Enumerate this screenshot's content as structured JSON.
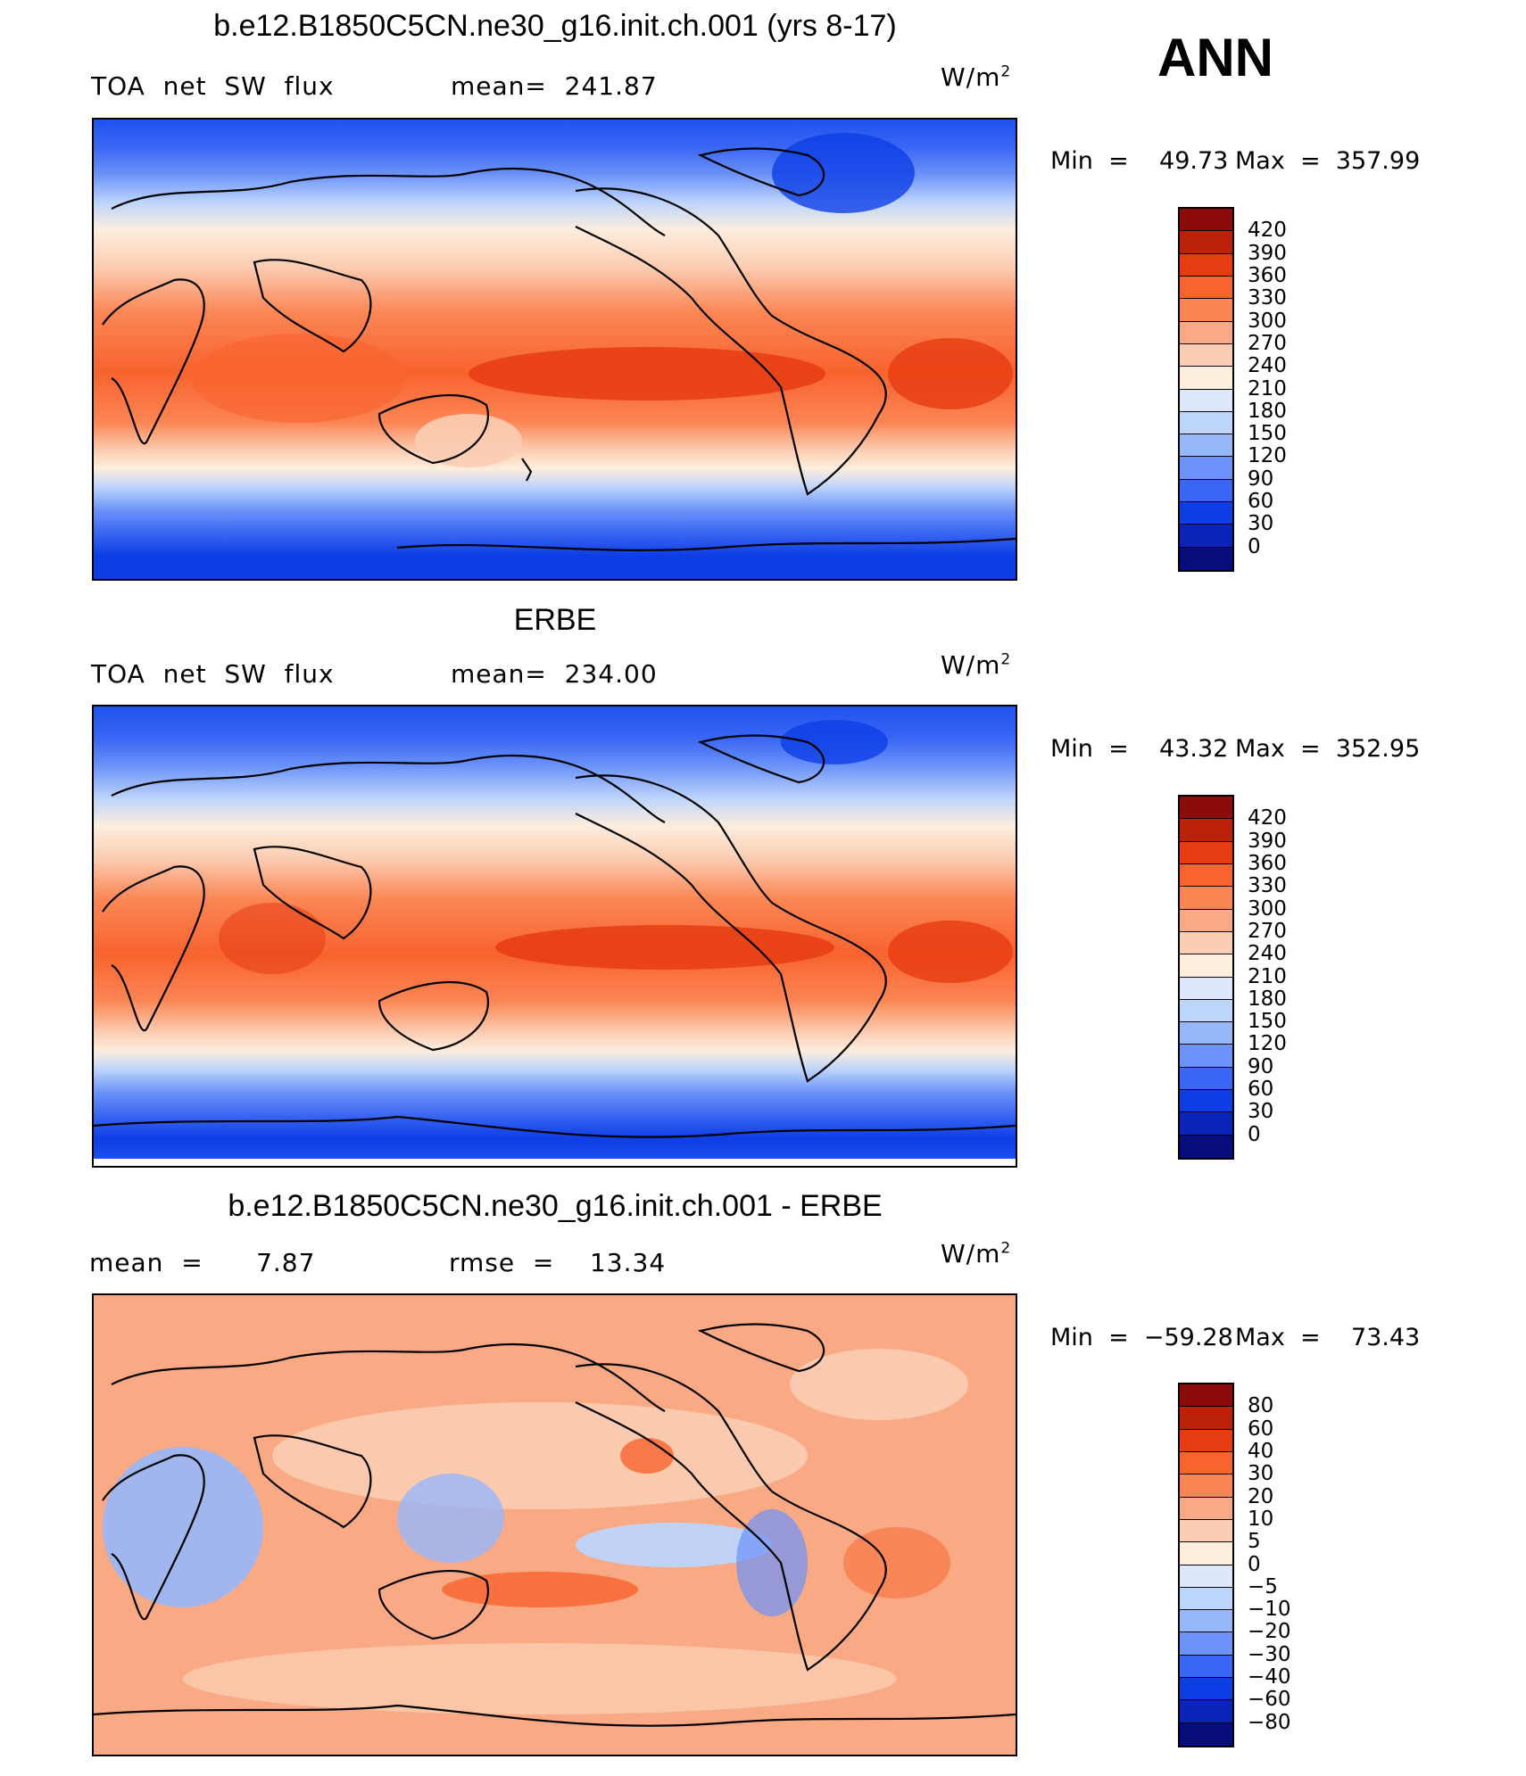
{
  "panels": [
    {
      "title": "b.e12.B1850C5CN.ne30_g16.init.ch.001 (yrs 8-17)",
      "left_label": "TOA  net  SW  flux",
      "center_label": "mean=  241.87",
      "units_prefix": "W/m",
      "units_exp": "2",
      "min_label": "Min  =    49.73",
      "max_label": "Max  =  357.99",
      "colorbar_labels": [
        "420",
        "390",
        "360",
        "330",
        "300",
        "270",
        "240",
        "210",
        "180",
        "150",
        "120",
        "90",
        "60",
        "30",
        "0"
      ],
      "colorbar_colors": [
        "#8c0c0c",
        "#bb2208",
        "#e63c12",
        "#f8632e",
        "#fb8655",
        "#f9a984",
        "#fbcdb2",
        "#fdeede",
        "#dde9fb",
        "#bdd4fb",
        "#97b7fb",
        "#6c93f9",
        "#3a66f3",
        "#0d3ee6",
        "#0a23b8",
        "#070e7c"
      ],
      "min_value": 49.73,
      "max_value": 357.99,
      "mean_value": 241.87
    },
    {
      "title": "ERBE",
      "left_label": "TOA  net  SW  flux",
      "center_label": "mean=  234.00",
      "units_prefix": "W/m",
      "units_exp": "2",
      "min_label": "Min  =    43.32",
      "max_label": "Max  =  352.95",
      "colorbar_labels": [
        "420",
        "390",
        "360",
        "330",
        "300",
        "270",
        "240",
        "210",
        "180",
        "150",
        "120",
        "90",
        "60",
        "30",
        "0"
      ],
      "colorbar_colors": [
        "#8c0c0c",
        "#bb2208",
        "#e63c12",
        "#f8632e",
        "#fb8655",
        "#f9a984",
        "#fbcdb2",
        "#fdeede",
        "#dde9fb",
        "#bdd4fb",
        "#97b7fb",
        "#6c93f9",
        "#3a66f3",
        "#0d3ee6",
        "#0a23b8",
        "#070e7c"
      ],
      "min_value": 43.32,
      "max_value": 352.95,
      "mean_value": 234.0
    },
    {
      "title": "b.e12.B1850C5CN.ne30_g16.init.ch.001 - ERBE",
      "left_label": "mean  =      7.87",
      "center_label": "rmse  =    13.34",
      "units_prefix": "W/m",
      "units_exp": "2",
      "min_label": "Min  =  −59.28",
      "max_label": "Max  =    73.43",
      "colorbar_labels": [
        "80",
        "60",
        "40",
        "30",
        "20",
        "10",
        "5",
        "0",
        "−5",
        "−10",
        "−20",
        "−30",
        "−40",
        "−60",
        "−80"
      ],
      "colorbar_colors": [
        "#8c0c0c",
        "#bb2208",
        "#e63c12",
        "#f8632e",
        "#fb8655",
        "#f9a984",
        "#fbcdb2",
        "#fdeede",
        "#dde9fb",
        "#bdd4fb",
        "#97b7fb",
        "#6c93f9",
        "#3a66f3",
        "#0d3ee6",
        "#0a23b8",
        "#070e7c"
      ],
      "min_value": -59.28,
      "max_value": 73.43,
      "mean_value": 7.87,
      "rmse_value": 13.34
    }
  ],
  "season_label": "ANN"
}
